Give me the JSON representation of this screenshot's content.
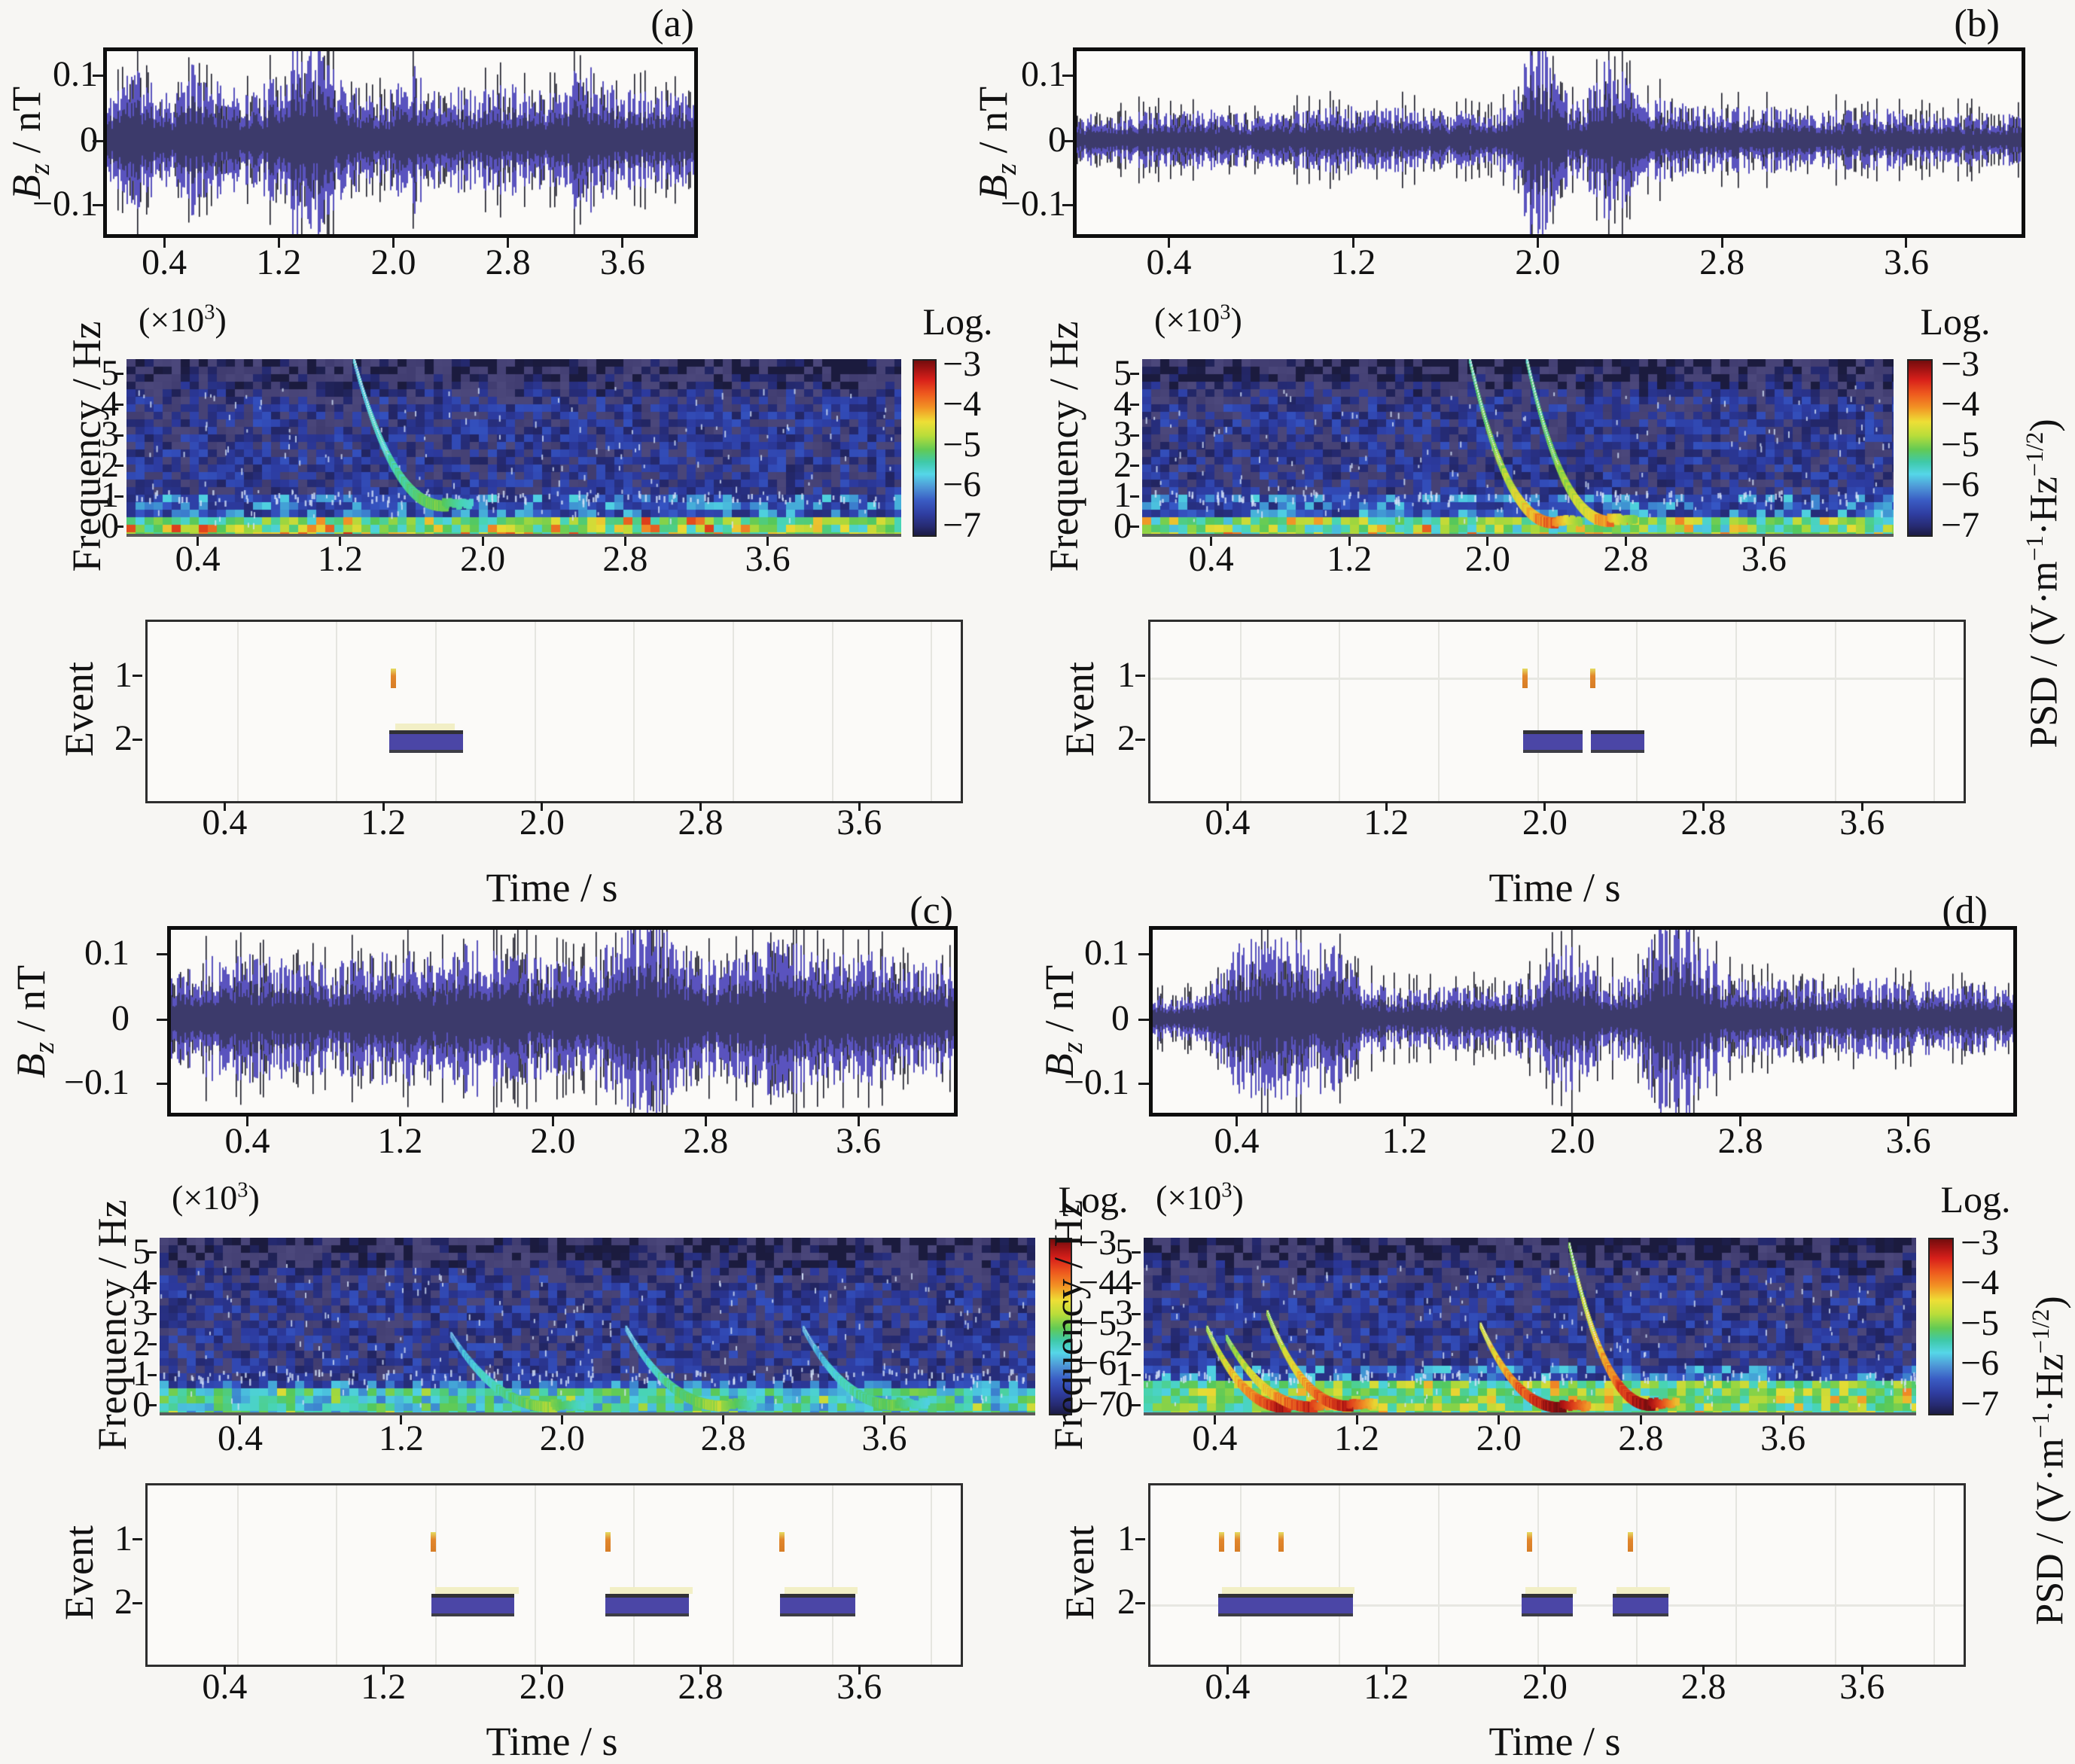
{
  "figure": {
    "background": "#f7f6f3",
    "xlabel": "Time / s",
    "xtick_labels": [
      "0.4",
      "1.2",
      "2.0",
      "2.8",
      "3.6"
    ],
    "xtick_values": [
      0.4,
      1.2,
      2.0,
      2.8,
      3.6
    ],
    "time_range_s": [
      0,
      4.1
    ],
    "wave_ylabel_parts": [
      {
        "t": "B",
        "s": "i"
      },
      {
        "t": "z",
        "s": "isub"
      },
      {
        "t": " / nT"
      }
    ],
    "wave_ytick_labels": [
      "0.1",
      "0",
      "−0.1"
    ],
    "spec_ylabel": "Frequency / Hz",
    "spec_scale_parts": [
      {
        "t": "(×10"
      },
      {
        "t": "3",
        "s": "sup"
      },
      {
        "t": ")"
      }
    ],
    "spec_ytick_labels": [
      "5",
      "4",
      "3",
      "2",
      "1",
      "0"
    ],
    "event_ylabel": "Event",
    "event_ytick_labels": [
      "1",
      "2"
    ],
    "event_gridline_times_s": [
      0.45,
      0.95,
      1.45,
      1.95,
      2.45,
      2.95,
      3.45,
      3.95
    ],
    "colorbar": {
      "title": "Log.",
      "tick_labels": [
        "−3",
        "−4",
        "−5",
        "−6",
        "−7"
      ],
      "tick_values": [
        -3,
        -4,
        -5,
        -6,
        -7
      ],
      "unit_parts": [
        {
          "t": "PSD / (V·m"
        },
        {
          "t": "−1",
          "s": "sup"
        },
        {
          "t": "·Hz"
        },
        {
          "t": "−1/2",
          "s": "sup"
        },
        {
          "t": ")"
        }
      ]
    },
    "colors": {
      "event_bar": "#4b46a6",
      "event_tick_orange": "#e2862c",
      "reference_strip_cream": "#f2efc6",
      "wave_core_navy": "#3c3a6b",
      "wave_light_violet": "#5a53be",
      "wave_spike_black": "#191926",
      "grid_gray": "#e5e5e0"
    }
  },
  "chart_data": [
    {
      "panel": "(a)",
      "waveform": {
        "type": "line",
        "ylim_nT": [
          -0.17,
          0.155
        ],
        "ytick_values": [
          0.1,
          0,
          -0.1
        ],
        "envelope_nT": [
          [
            0,
            0.048
          ],
          [
            0.1,
            0.085
          ],
          [
            0.2,
            0.095
          ],
          [
            0.3,
            0.07
          ],
          [
            0.45,
            0.06
          ],
          [
            0.6,
            0.095
          ],
          [
            0.7,
            0.075
          ],
          [
            0.85,
            0.065
          ],
          [
            1.0,
            0.06
          ],
          [
            1.15,
            0.075
          ],
          [
            1.28,
            0.115
          ],
          [
            1.4,
            0.13
          ],
          [
            1.55,
            0.11
          ],
          [
            1.7,
            0.07
          ],
          [
            1.85,
            0.06
          ],
          [
            2.0,
            0.065
          ],
          [
            2.1,
            0.1
          ],
          [
            2.25,
            0.07
          ],
          [
            2.4,
            0.07
          ],
          [
            2.55,
            0.06
          ],
          [
            2.7,
            0.065
          ],
          [
            2.85,
            0.075
          ],
          [
            3.0,
            0.06
          ],
          [
            3.15,
            0.065
          ],
          [
            3.3,
            0.105
          ],
          [
            3.45,
            0.075
          ],
          [
            3.6,
            0.06
          ],
          [
            3.8,
            0.06
          ],
          [
            4.1,
            0.055
          ]
        ],
        "seed": 11
      },
      "spectrogram": {
        "type": "heatmap",
        "flim_kHz": [
          -0.12,
          5.55
        ],
        "tlim_s": [
          0,
          4.35
        ],
        "psd_log_range": [
          -7,
          -3
        ],
        "whistler_chirps": [
          {
            "t0": 1.28,
            "f0_kHz": 5.5,
            "t1": 1.78,
            "f1_kHz": 0.85,
            "log_psd": -5.9,
            "gain": 0.9
          }
        ],
        "low_band": {
          "f_max_kHz": 0.42,
          "base": -5.6,
          "range": 1.5,
          "hot_p": 0.13,
          "hot_v": -4.0
        },
        "mid_band": {
          "f_min_kHz": 0.42,
          "f_max_kHz": 1.05,
          "p": 0.3,
          "v": -6.0,
          "range": 0.45
        },
        "seed": 21
      },
      "events": {
        "type": "intervals",
        "event1_times_s": [
          1.24
        ],
        "event2_intervals_s": [
          [
            1.22,
            1.59
          ]
        ],
        "reference_strips_s": [
          [
            1.25,
            1.55
          ]
        ],
        "hline_levels": []
      }
    },
    {
      "panel": "(b)",
      "waveform": {
        "type": "line",
        "ylim_nT": [
          -0.17,
          0.155
        ],
        "ytick_values": [
          0.1,
          0,
          -0.1
        ],
        "envelope_nT": [
          [
            0,
            0.03
          ],
          [
            0.3,
            0.035
          ],
          [
            0.5,
            0.042
          ],
          [
            0.7,
            0.032
          ],
          [
            0.9,
            0.035
          ],
          [
            1.1,
            0.04
          ],
          [
            1.3,
            0.045
          ],
          [
            1.5,
            0.035
          ],
          [
            1.7,
            0.035
          ],
          [
            1.85,
            0.04
          ],
          [
            1.93,
            0.09
          ],
          [
            1.98,
            0.155
          ],
          [
            2.05,
            0.1
          ],
          [
            2.12,
            0.06
          ],
          [
            2.2,
            0.05
          ],
          [
            2.28,
            0.1
          ],
          [
            2.35,
            0.09
          ],
          [
            2.45,
            0.06
          ],
          [
            2.6,
            0.045
          ],
          [
            2.8,
            0.04
          ],
          [
            3.0,
            0.042
          ],
          [
            3.2,
            0.035
          ],
          [
            3.5,
            0.038
          ],
          [
            3.8,
            0.032
          ],
          [
            4.1,
            0.032
          ]
        ],
        "seed": 12
      },
      "spectrogram": {
        "type": "heatmap",
        "flim_kHz": [
          -0.12,
          5.55
        ],
        "tlim_s": [
          0,
          4.35
        ],
        "psd_log_range": [
          -7,
          -3
        ],
        "whistler_chirps": [
          {
            "t0": 1.9,
            "f0_kHz": 5.5,
            "t1": 2.38,
            "f1_kHz": 0.3,
            "log_psd": -5.4,
            "gain": 1.5
          },
          {
            "t0": 2.23,
            "f0_kHz": 5.5,
            "t1": 2.7,
            "f1_kHz": 0.35,
            "log_psd": -5.5,
            "gain": 1.4
          }
        ],
        "low_band": {
          "f_max_kHz": 0.45,
          "base": -5.7,
          "range": 1.4,
          "hot_p": 0.1,
          "hot_v": -4.2
        },
        "mid_band": {
          "f_min_kHz": 0.45,
          "f_max_kHz": 1.1,
          "p": 0.3,
          "v": -6.0,
          "range": 0.45
        },
        "seed": 22
      },
      "events": {
        "type": "intervals",
        "event1_times_s": [
          1.89,
          2.23
        ],
        "event2_intervals_s": [
          [
            1.88,
            2.18
          ],
          [
            2.22,
            2.49
          ]
        ],
        "reference_strips_s": [],
        "hline_levels": [
          1
        ]
      }
    },
    {
      "panel": "(c)",
      "waveform": {
        "type": "line",
        "ylim_nT": [
          -0.17,
          0.155
        ],
        "ytick_values": [
          0.1,
          0,
          -0.1
        ],
        "envelope_nT": [
          [
            0,
            0.068
          ],
          [
            0.2,
            0.075
          ],
          [
            0.4,
            0.08
          ],
          [
            0.6,
            0.072
          ],
          [
            0.8,
            0.068
          ],
          [
            1.0,
            0.075
          ],
          [
            1.2,
            0.085
          ],
          [
            1.35,
            0.075
          ],
          [
            1.5,
            0.09
          ],
          [
            1.65,
            0.1
          ],
          [
            1.8,
            0.085
          ],
          [
            2.0,
            0.07
          ],
          [
            2.2,
            0.08
          ],
          [
            2.35,
            0.11
          ],
          [
            2.5,
            0.13
          ],
          [
            2.65,
            0.09
          ],
          [
            2.8,
            0.08
          ],
          [
            3.0,
            0.085
          ],
          [
            3.2,
            0.1
          ],
          [
            3.35,
            0.09
          ],
          [
            3.5,
            0.085
          ],
          [
            3.7,
            0.08
          ],
          [
            3.9,
            0.075
          ],
          [
            4.1,
            0.07
          ]
        ],
        "seed": 13
      },
      "spectrogram": {
        "type": "heatmap",
        "flim_kHz": [
          -0.12,
          5.55
        ],
        "tlim_s": [
          0,
          4.35
        ],
        "psd_log_range": [
          -7,
          -3
        ],
        "whistler_chirps": [
          {
            "t0": 1.45,
            "f0_kHz": 2.4,
            "t1": 1.95,
            "f1_kHz": 0.12,
            "log_psd": -6.1,
            "gain": 1.3
          },
          {
            "t0": 2.32,
            "f0_kHz": 2.6,
            "t1": 2.8,
            "f1_kHz": 0.15,
            "log_psd": -6.0,
            "gain": 1.3
          },
          {
            "t0": 3.2,
            "f0_kHz": 2.6,
            "t1": 3.66,
            "f1_kHz": 0.18,
            "log_psd": -6.1,
            "gain": 1.1
          }
        ],
        "low_band": {
          "f_max_kHz": 0.55,
          "base": -6.0,
          "range": 1.2,
          "hot_p": 0.05,
          "hot_v": -4.8
        },
        "mid_band": {
          "f_min_kHz": 0.55,
          "f_max_kHz": 1.0,
          "p": 0.35,
          "v": -6.05,
          "range": 0.4
        },
        "seed": 23
      },
      "events": {
        "type": "intervals",
        "event1_times_s": [
          1.44,
          2.32,
          3.2
        ],
        "event2_intervals_s": [
          [
            1.43,
            1.85
          ],
          [
            2.31,
            2.73
          ],
          [
            3.19,
            3.57
          ]
        ],
        "reference_strips_s": [
          [
            1.45,
            1.87
          ],
          [
            2.33,
            2.75
          ],
          [
            3.21,
            3.58
          ]
        ],
        "hline_levels": []
      }
    },
    {
      "panel": "(d)",
      "waveform": {
        "type": "line",
        "ylim_nT": [
          -0.17,
          0.155
        ],
        "ytick_values": [
          0.1,
          0,
          -0.1
        ],
        "envelope_nT": [
          [
            0,
            0.028
          ],
          [
            0.25,
            0.032
          ],
          [
            0.35,
            0.07
          ],
          [
            0.45,
            0.105
          ],
          [
            0.6,
            0.1
          ],
          [
            0.75,
            0.095
          ],
          [
            0.9,
            0.085
          ],
          [
            1.0,
            0.045
          ],
          [
            1.2,
            0.035
          ],
          [
            1.4,
            0.04
          ],
          [
            1.6,
            0.042
          ],
          [
            1.8,
            0.05
          ],
          [
            1.95,
            0.095
          ],
          [
            2.05,
            0.075
          ],
          [
            2.15,
            0.05
          ],
          [
            2.3,
            0.055
          ],
          [
            2.45,
            0.14
          ],
          [
            2.55,
            0.12
          ],
          [
            2.7,
            0.06
          ],
          [
            2.9,
            0.045
          ],
          [
            3.1,
            0.05
          ],
          [
            3.3,
            0.048
          ],
          [
            3.5,
            0.05
          ],
          [
            3.7,
            0.045
          ],
          [
            4.1,
            0.04
          ]
        ],
        "seed": 14
      },
      "spectrogram": {
        "type": "heatmap",
        "flim_kHz": [
          -0.12,
          5.55
        ],
        "tlim_s": [
          0,
          4.35
        ],
        "psd_log_range": [
          -7,
          -3
        ],
        "whistler_chirps": [
          {
            "t0": 0.36,
            "f0_kHz": 2.6,
            "t1": 0.8,
            "f1_kHz": 0.1,
            "log_psd": -4.9,
            "gain": 1.5
          },
          {
            "t0": 0.47,
            "f0_kHz": 2.3,
            "t1": 0.95,
            "f1_kHz": 0.12,
            "log_psd": -5.0,
            "gain": 1.4
          },
          {
            "t0": 0.7,
            "f0_kHz": 3.1,
            "t1": 1.15,
            "f1_kHz": 0.15,
            "log_psd": -4.9,
            "gain": 1.4
          },
          {
            "t0": 1.9,
            "f0_kHz": 2.7,
            "t1": 2.35,
            "f1_kHz": 0.1,
            "log_psd": -4.7,
            "gain": 1.5
          },
          {
            "t0": 2.4,
            "f0_kHz": 5.3,
            "t1": 2.85,
            "f1_kHz": 0.18,
            "log_psd": -5.0,
            "gain": 1.8
          }
        ],
        "low_band": {
          "f_max_kHz": 0.85,
          "base": -5.6,
          "range": 1.3,
          "hot_p": 0.09,
          "hot_v": -4.4
        },
        "mid_band": {
          "f_min_kHz": 0.85,
          "f_max_kHz": 1.35,
          "p": 0.35,
          "v": -6.0,
          "range": 0.45
        },
        "seed": 24
      },
      "events": {
        "type": "intervals",
        "event1_times_s": [
          0.36,
          0.44,
          0.66,
          1.91,
          2.42
        ],
        "event2_intervals_s": [
          [
            0.34,
            1.02
          ],
          [
            1.87,
            2.13
          ],
          [
            2.33,
            2.61
          ]
        ],
        "reference_strips_s": [
          [
            0.36,
            1.03
          ],
          [
            1.89,
            2.15
          ],
          [
            2.35,
            2.62
          ]
        ],
        "hline_levels": [
          2
        ]
      }
    }
  ]
}
